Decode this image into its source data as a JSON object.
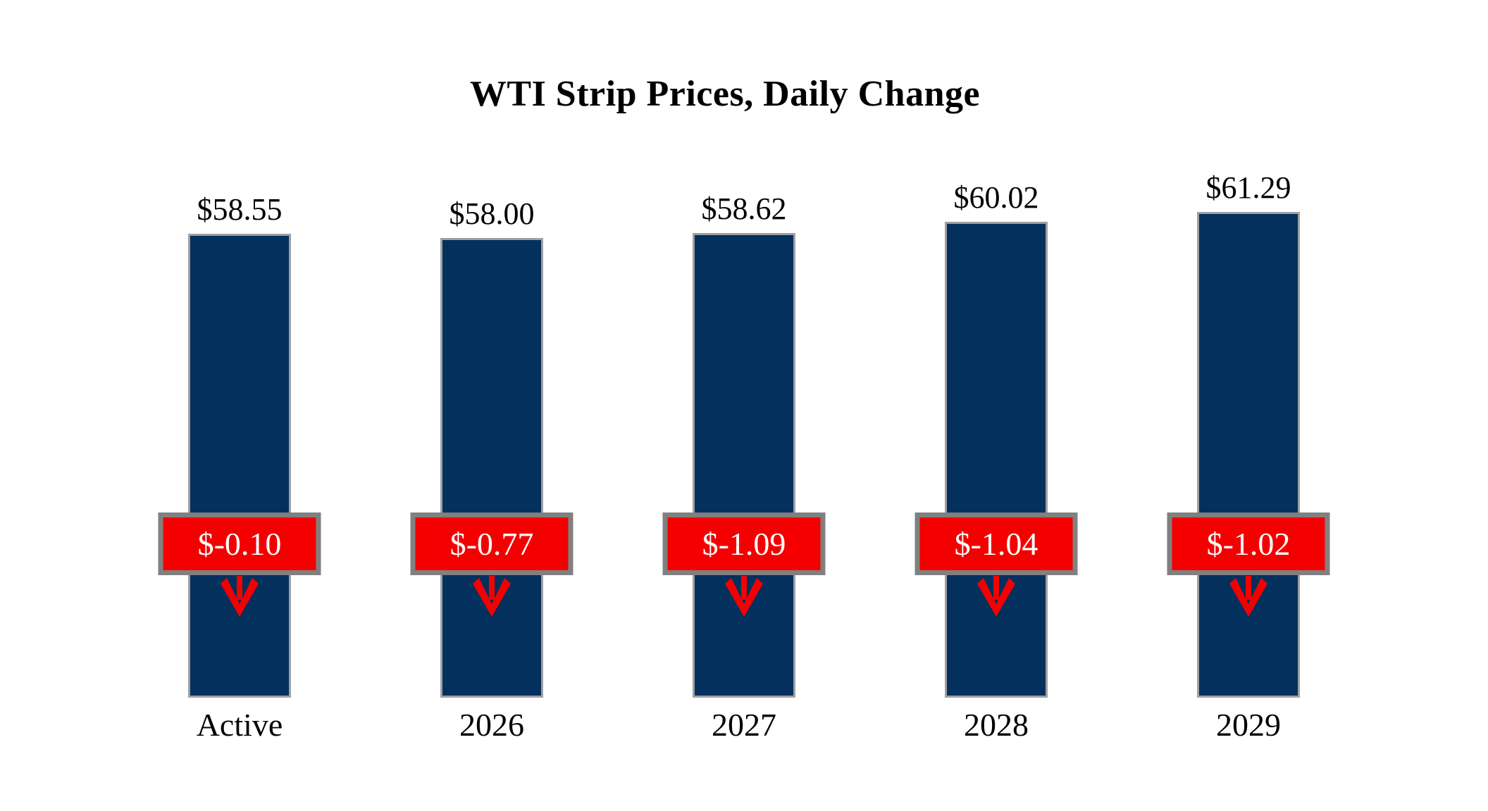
{
  "title": "WTI Strip Prices, Daily Change",
  "chart_data": {
    "type": "bar",
    "title": "WTI Strip Prices, Daily Change",
    "categories": [
      "Active",
      "2026",
      "2027",
      "2028",
      "2029"
    ],
    "series": [
      {
        "name": "Strip Price",
        "values": [
          58.55,
          58.0,
          58.62,
          60.02,
          61.29
        ]
      },
      {
        "name": "Daily Change",
        "values": [
          -0.1,
          -0.77,
          -1.09,
          -1.04,
          -1.02
        ]
      }
    ],
    "price_labels": [
      "$58.55",
      "$58.00",
      "$58.62",
      "$60.02",
      "$61.29"
    ],
    "change_labels": [
      "$-0.10",
      "$-0.77",
      "$-1.09",
      "$-1.04",
      "$-1.02"
    ],
    "xlabel": "",
    "ylabel": "",
    "ylim": [
      0,
      65
    ],
    "grid": false,
    "legend_position": "none",
    "colors": {
      "bar_fill": "#04305e",
      "bar_border": "#a0a0a0",
      "change_box_fill": "#f40000",
      "change_box_border": "#808080",
      "change_text": "#ffffff",
      "label_text": "#000000",
      "background": "#ffffff",
      "arrow": "#f40000"
    },
    "icons": [
      "down-arrow-icon"
    ]
  }
}
